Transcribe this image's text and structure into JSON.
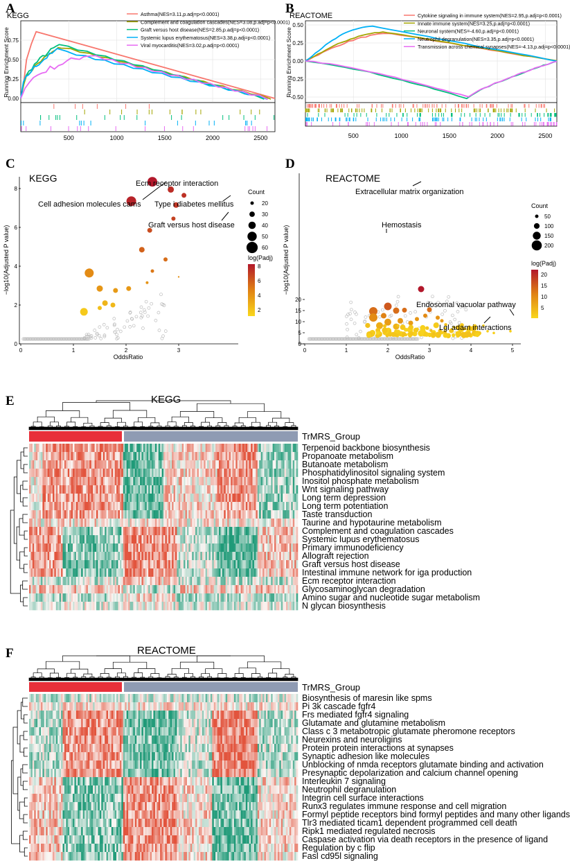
{
  "panels": {
    "A": {
      "label": "A",
      "title": "KEGG",
      "ylabel": "Running Enrichment Score",
      "yticks": [
        "0.75",
        "0.50",
        "0.25",
        "0.00"
      ],
      "xticks": [
        "500",
        "1000",
        "1500",
        "2000",
        "2500"
      ],
      "legend": [
        {
          "text": "Asthma(NES=3.11,p.adj=p<0.0001)",
          "color": "#F8766D"
        },
        {
          "text": "Complement and coagulation cascades(NES=3.08,p.adj=p<0.0001)",
          "color": "#A3A500"
        },
        {
          "text": "Graft versus host disease(NES=2.85,p.adj=p<0.0001)",
          "color": "#00BF7D"
        },
        {
          "text": "Systemic lupus erythematosus(NES=3.38,p.adj=p<0.0001)",
          "color": "#00B0F6"
        },
        {
          "text": "Viral myocarditis(NES=3.02,p.adj=p<0.0001)",
          "color": "#E76BF3"
        }
      ]
    },
    "B": {
      "label": "B",
      "title": "REACTOME",
      "ylabel": "Running Enrichment Score",
      "yticks": [
        "0.50",
        "0.25",
        "0.00",
        "-0.25",
        "-0.50"
      ],
      "xticks": [
        "500",
        "1000",
        "1500",
        "2000",
        "2500"
      ],
      "legend": [
        {
          "text": "Cytokine signaling in immune system(NES=2.95,p.adj=p<0.0001)",
          "color": "#F8766D"
        },
        {
          "text": "Innate immune system(NES=3.25,p.adj=p<0.0001)",
          "color": "#A3A500"
        },
        {
          "text": "Neuronal system(NES=-4.60,p.adj=p<0.0001)",
          "color": "#00BF7D"
        },
        {
          "text": "Neutrophil degranulation(NES=3.35,p.adj=p<0.0001)",
          "color": "#00B0F6"
        },
        {
          "text": "Transmission across chemical synapses(NES=-4.13,p.adj=p<0.0001)",
          "color": "#E76BF3"
        }
      ]
    },
    "C": {
      "label": "C",
      "title": "KEGG",
      "xlabel": "OddsRatio",
      "ylabel": "−log10(Adjusted P value)",
      "xticks": [
        "0",
        "1",
        "2",
        "3"
      ],
      "yticks": [
        "0",
        "2",
        "4",
        "6",
        "8"
      ],
      "annotations": [
        "Ecm receptor interaction",
        "Cell adhesion molecules cams",
        "Type i diabetes mellitus",
        "Graft versus host disease"
      ],
      "count_title": "Count",
      "count_levels": [
        "20",
        "30",
        "40",
        "50",
        "60"
      ],
      "color_title": "log(Padj)",
      "color_levels": [
        "8",
        "6",
        "4",
        "2"
      ]
    },
    "D": {
      "label": "D",
      "title": "REACTOME",
      "xlabel": "OddsRatio",
      "ylabel": "−log10(Adjusted P value)",
      "xticks": [
        "0",
        "1",
        "2",
        "3",
        "4",
        "5"
      ],
      "yticks": [
        "0",
        "5",
        "10",
        "15",
        "20"
      ],
      "annotations": [
        "Extracellular matrix organization",
        "Hemostasis",
        "Endosomal vacuolar pathway",
        "Lgl adam interactions"
      ],
      "count_title": "Count",
      "count_levels": [
        "50",
        "100",
        "150",
        "200"
      ],
      "color_title": "log(Padj)",
      "color_levels": [
        "20",
        "15",
        "10",
        "5"
      ]
    },
    "E": {
      "label": "E",
      "title": "KEGG",
      "group_label": "TrMRS_Group",
      "rows": [
        "Terpenoid backbone biosynthesis",
        "Propanoate metabolism",
        "Butanoate metabolism",
        "Phosphatidylinositol signaling system",
        "Inositol phosphate metabolism",
        "Wnt signaling pathway",
        "Long term depression",
        "Long term potentiation",
        "Taste transduction",
        "Taurine and hypotaurine metabolism",
        "Complement and coagulation cascades",
        "Systemic lupus erythematosus",
        "Primary immunodeficiency",
        "Allograft rejection",
        "Graft versus host disease",
        "Intestinal immune network for iga production",
        "Ecm receptor interaction",
        "Glycosaminoglycan degradation",
        "Amino sugar and nucleotide sugar metabolism",
        "N glycan biosynthesis"
      ]
    },
    "F": {
      "label": "F",
      "title": "REACTOME",
      "group_label": "TrMRS_Group",
      "rows": [
        "Biosynthesis of maresin like spms",
        "Pi 3k cascade fgfr4",
        "Frs mediated fgfr4 signaling",
        "Glutamate and glutamine metabolism",
        "Class c 3 metabotropic glutamate pheromone receptors",
        "Neurexins and neuroligins",
        "Protein protein interactions at synapses",
        "Synaptic adhesion like molecules",
        "Unblocking of nmda receptors glutamate binding and activation",
        "Presynaptic depolarization and calcium channel opening",
        "Interleukin 7 signaling",
        "Neutrophil degranulation",
        "Integrin cell surface interactions",
        "Runx3 regulates immune response and cell migration",
        "Formyl peptide receptors bind formyl peptides and many other ligands",
        "Tlr3 mediated ticam1 dependent programmed cell death",
        "Ripk1 mediated regulated necrosis",
        "Caspase activation via death receptors in the presence of ligand",
        "Regulation by c flip",
        "Fasl cd95l signaling"
      ]
    }
  },
  "colors": {
    "group_high": "#E8303A",
    "group_low": "#8F9BB3",
    "heat_high": "#E2543D",
    "heat_low": "#1F9A78"
  }
}
